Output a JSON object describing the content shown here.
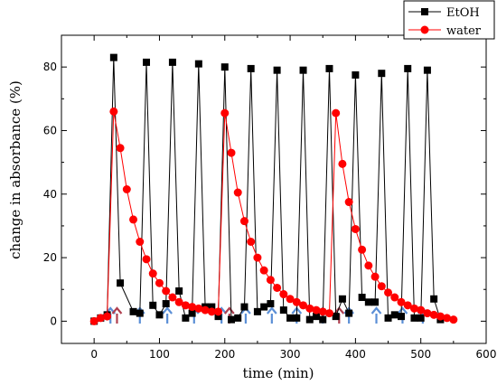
{
  "chart_data": {
    "type": "line",
    "xlabel": "time (min)",
    "ylabel": "change in absorbance (%)",
    "xlim": [
      -50,
      600
    ],
    "ylim": [
      -7,
      90
    ],
    "xticks": [
      0,
      100,
      200,
      300,
      400,
      500,
      600
    ],
    "yticks": [
      0,
      20,
      40,
      60,
      80
    ],
    "legend_position": "top-right",
    "grid": false,
    "series": [
      {
        "name": "EtOH",
        "color": "#000000",
        "marker": "square",
        "x": [
          0,
          10,
          20,
          30,
          40,
          60,
          70,
          80,
          90,
          100,
          110,
          120,
          130,
          140,
          150,
          160,
          170,
          180,
          190,
          200,
          210,
          220,
          230,
          240,
          250,
          260,
          270,
          280,
          290,
          300,
          310,
          320,
          330,
          340,
          350,
          360,
          370,
          380,
          390,
          400,
          410,
          420,
          430,
          440,
          450,
          460,
          470,
          480,
          490,
          500,
          510,
          520,
          530
        ],
        "y": [
          0,
          1,
          2,
          83,
          12,
          3,
          2.5,
          81.5,
          5,
          2,
          5.5,
          81.5,
          9.5,
          1,
          2.5,
          81,
          4.5,
          4.5,
          1.5,
          80,
          0.5,
          1,
          4.5,
          79.5,
          3,
          4.5,
          5.5,
          79,
          3.5,
          1,
          1,
          79,
          0.5,
          1.5,
          0.5,
          79.5,
          1.5,
          7,
          2.5,
          77.5,
          7.5,
          6,
          6,
          78,
          1,
          2,
          1.5,
          79.5,
          1,
          1,
          79,
          7,
          0.5
        ]
      },
      {
        "name": "water",
        "color": "#ff0000",
        "marker": "circle",
        "x": [
          0,
          10,
          20,
          30,
          40,
          50,
          60,
          70,
          80,
          90,
          100,
          110,
          120,
          130,
          140,
          150,
          160,
          170,
          180,
          190,
          200,
          210,
          220,
          230,
          240,
          250,
          260,
          270,
          280,
          290,
          300,
          310,
          320,
          330,
          340,
          350,
          360,
          370,
          380,
          390,
          400,
          410,
          420,
          430,
          440,
          450,
          460,
          470,
          480,
          490,
          500,
          510,
          520,
          530,
          540,
          550
        ],
        "y": [
          0,
          1,
          1.5,
          66,
          54.5,
          41.5,
          32,
          25,
          19.5,
          15,
          12,
          9.5,
          7.5,
          6,
          5,
          4.5,
          4,
          3.5,
          3,
          3,
          65.5,
          53,
          40.5,
          31.5,
          25,
          20,
          16,
          13,
          10.5,
          8.5,
          7,
          6,
          5,
          4,
          3.5,
          3,
          2.5,
          65.5,
          49.5,
          37.5,
          29,
          22.5,
          17.5,
          14,
          11,
          9,
          7.5,
          6,
          5,
          4,
          3.5,
          2.5,
          2,
          1.5,
          1,
          0.5
        ]
      }
    ],
    "annotations": {
      "blue_arrows_x": [
        25,
        70,
        112,
        153,
        195,
        232,
        272,
        310,
        350,
        390,
        432,
        472,
        503
      ],
      "red_arrows_x": [
        35,
        207,
        375
      ],
      "blue_arrow_color": "#5b8fd6",
      "red_arrow_color": "#b04050"
    }
  }
}
